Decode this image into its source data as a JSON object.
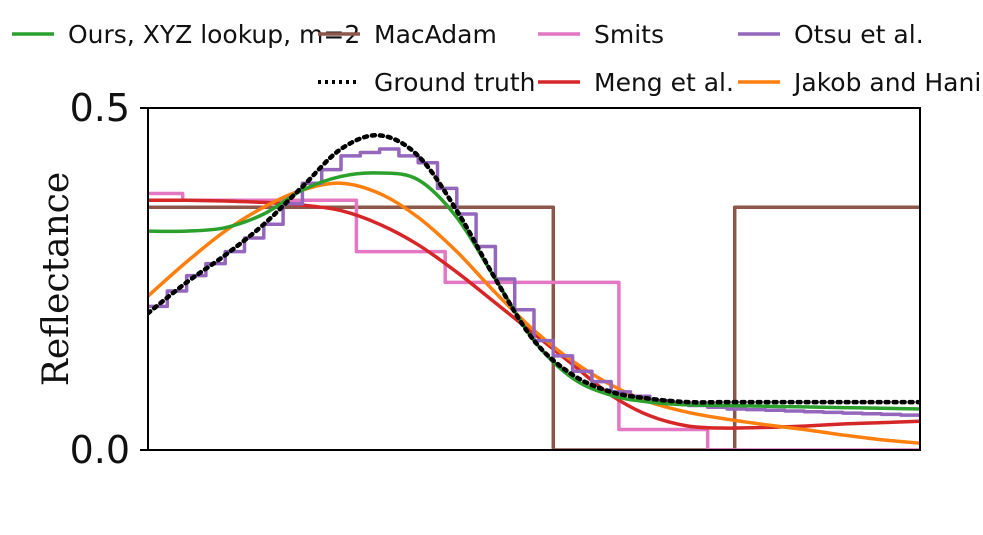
{
  "chart_data": {
    "type": "line",
    "title": "",
    "xlabel": "",
    "ylabel": "Reflectance",
    "xlim": [
      0,
      1
    ],
    "ylim": [
      0,
      0.5
    ],
    "yticks": [
      {
        "value": 0.0,
        "label": "0.0"
      },
      {
        "value": 0.5,
        "label": "0.5"
      }
    ],
    "grid": false,
    "legend_position": "top",
    "series": [
      {
        "name": "Ours, XYZ lookup, m=2",
        "color": "#2ca02c",
        "style": "solid",
        "x": [
          0,
          0.05,
          0.1,
          0.15,
          0.2,
          0.25,
          0.3,
          0.35,
          0.4,
          0.45,
          0.5,
          0.55,
          0.6,
          0.65,
          0.7,
          0.75,
          0.8,
          0.85,
          0.9,
          0.95,
          1.0
        ],
        "y": [
          0.32,
          0.32,
          0.325,
          0.345,
          0.38,
          0.4,
          0.405,
          0.395,
          0.34,
          0.25,
          0.16,
          0.105,
          0.08,
          0.07,
          0.066,
          0.065,
          0.064,
          0.063,
          0.062,
          0.061,
          0.06
        ]
      },
      {
        "name": "MacAdam",
        "color": "#8c564b",
        "style": "solid",
        "x": [
          0,
          0.525,
          0.525,
          0.76,
          0.76,
          1.0
        ],
        "y": [
          0.355,
          0.355,
          0.0,
          0.0,
          0.355,
          0.355
        ]
      },
      {
        "name": "Ground truth",
        "color": "#000000",
        "style": "dotted",
        "x": [
          0,
          0.05,
          0.1,
          0.15,
          0.2,
          0.25,
          0.3,
          0.35,
          0.4,
          0.45,
          0.5,
          0.55,
          0.6,
          0.65,
          0.7,
          0.75,
          0.8,
          0.85,
          0.9,
          0.95,
          1.0
        ],
        "y": [
          0.2,
          0.245,
          0.285,
          0.33,
          0.385,
          0.44,
          0.46,
          0.43,
          0.35,
          0.25,
          0.16,
          0.11,
          0.085,
          0.075,
          0.07,
          0.07,
          0.07,
          0.07,
          0.07,
          0.07,
          0.07
        ]
      },
      {
        "name": "Smits",
        "color": "#e377c2",
        "style": "solid",
        "x": [
          0,
          0.045,
          0.045,
          0.27,
          0.27,
          0.385,
          0.385,
          0.61,
          0.61,
          0.725,
          0.725,
          1.0
        ],
        "y": [
          0.375,
          0.375,
          0.365,
          0.365,
          0.29,
          0.29,
          0.245,
          0.245,
          0.03,
          0.03,
          0.0,
          0.0
        ]
      },
      {
        "name": "Meng et al.",
        "color": "#d62728",
        "style": "solid",
        "x": [
          0,
          0.05,
          0.1,
          0.15,
          0.2,
          0.25,
          0.3,
          0.35,
          0.4,
          0.45,
          0.5,
          0.55,
          0.6,
          0.65,
          0.7,
          0.75,
          0.8,
          0.85,
          0.9,
          0.95,
          1.0
        ],
        "y": [
          0.365,
          0.365,
          0.364,
          0.362,
          0.358,
          0.35,
          0.33,
          0.3,
          0.26,
          0.215,
          0.17,
          0.125,
          0.08,
          0.05,
          0.035,
          0.032,
          0.033,
          0.035,
          0.038,
          0.04,
          0.042
        ]
      },
      {
        "name": "Otsu et al.",
        "color": "#9467bd",
        "style": "step",
        "x": [
          0,
          0.05,
          0.1,
          0.15,
          0.2,
          0.25,
          0.3,
          0.35,
          0.4,
          0.45,
          0.5,
          0.55,
          0.6,
          0.65,
          0.7,
          0.75,
          0.8,
          0.85,
          0.9,
          0.95,
          1.0
        ],
        "y": [
          0.21,
          0.255,
          0.29,
          0.33,
          0.39,
          0.43,
          0.44,
          0.42,
          0.345,
          0.25,
          0.16,
          0.115,
          0.085,
          0.072,
          0.065,
          0.06,
          0.058,
          0.056,
          0.054,
          0.052,
          0.05
        ]
      },
      {
        "name": "Jakob and Hanika",
        "color": "#ff7f0e",
        "style": "solid",
        "x": [
          0,
          0.05,
          0.1,
          0.15,
          0.2,
          0.25,
          0.3,
          0.35,
          0.4,
          0.45,
          0.5,
          0.55,
          0.6,
          0.65,
          0.7,
          0.75,
          0.8,
          0.85,
          0.9,
          0.95,
          1.0
        ],
        "y": [
          0.225,
          0.275,
          0.32,
          0.355,
          0.38,
          0.39,
          0.375,
          0.34,
          0.29,
          0.23,
          0.175,
          0.13,
          0.095,
          0.07,
          0.055,
          0.045,
          0.037,
          0.03,
          0.022,
          0.015,
          0.01
        ]
      }
    ],
    "legend": [
      {
        "series": 0
      },
      {
        "series": 1
      },
      {
        "series": 3
      },
      {
        "series": 5
      },
      {
        "series": 2
      },
      {
        "series": 4
      },
      {
        "series": 6
      }
    ]
  }
}
